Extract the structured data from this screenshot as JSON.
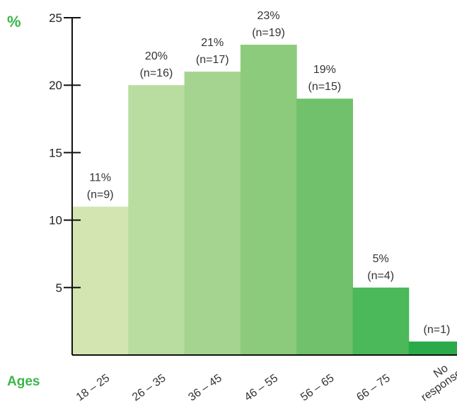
{
  "chart_data": {
    "type": "bar",
    "ylabel": "%",
    "xlabel": "Ages",
    "ylim": [
      0,
      25
    ],
    "yticks": [
      "5",
      "10",
      "15",
      "20",
      "25"
    ],
    "categories": [
      "18 – 25",
      "26 – 35",
      "36 – 45",
      "46 – 55",
      "56 – 65",
      "66 – 75",
      "No response"
    ],
    "values": [
      11,
      20,
      21,
      23,
      19,
      5,
      1
    ],
    "data_labels": [
      [
        "11%",
        "(n=9)"
      ],
      [
        "20%",
        "(n=16)"
      ],
      [
        "21%",
        "(n=17)"
      ],
      [
        "23%",
        "(n=19)"
      ],
      [
        "19%",
        "(n=15)"
      ],
      [
        "5%",
        "(n=4)"
      ],
      [
        "(n=1)"
      ]
    ],
    "bar_colors": [
      "#d3e6b1",
      "#b9dca0",
      "#a4d48f",
      "#8ccb7b",
      "#70c06c",
      "#4bb85a",
      "#2aaa48"
    ],
    "accent_color": "#3cb54a",
    "grid": false
  }
}
